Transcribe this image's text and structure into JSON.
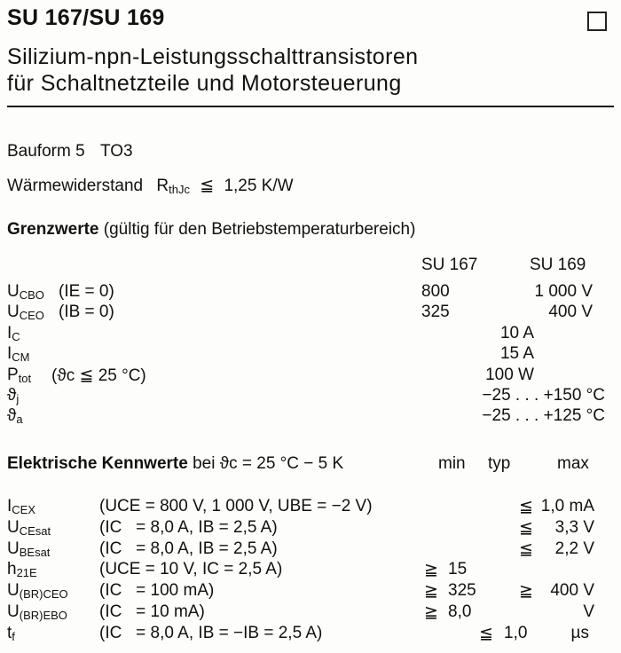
{
  "header": {
    "title": "SU 167/SU 169",
    "subtitle_line1": "Silizium-npn-Leistungsschalttransistoren",
    "subtitle_line2": "für Schaltnetzteile und Motorsteuerung"
  },
  "package": {
    "label": "Bauform 5",
    "value": "TO3"
  },
  "thermal": {
    "label": "Wärmewiderstand",
    "symbol": "R",
    "symbol_sub": "thJc",
    "relation": "≦",
    "value": "1,25 K/W"
  },
  "limits": {
    "heading": "Grenzwerte",
    "heading_note": "(gültig für den Betriebstemperaturbereich)",
    "columns": [
      "SU 167",
      "SU 169"
    ],
    "rows": [
      {
        "sym": "U",
        "sub": "CBO",
        "cond": "(IE = 0)",
        "su167": "800",
        "su169": "1 000 V",
        "both": ""
      },
      {
        "sym": "U",
        "sub": "CEO",
        "cond": "(IB = 0)",
        "su167": "325",
        "su169": "400 V",
        "both": ""
      },
      {
        "sym": "I",
        "sub": "C",
        "cond": "",
        "su167": "",
        "su169": "",
        "both": "10 A"
      },
      {
        "sym": "I",
        "sub": "CM",
        "cond": "",
        "su167": "",
        "su169": "",
        "both": "15 A"
      },
      {
        "sym": "P",
        "sub": "tot",
        "cond": "(ϑc ≦ 25 °C)",
        "su167": "",
        "su169": "",
        "both": "100 W"
      },
      {
        "sym": "ϑ",
        "sub": "j",
        "cond": "",
        "su167": "",
        "su169": "",
        "both": "−25 . . . +150 °C"
      },
      {
        "sym": "ϑ",
        "sub": "a",
        "cond": "",
        "su167": "",
        "su169": "",
        "both": "−25 . . . +125 °C"
      }
    ]
  },
  "electrical": {
    "heading": "Elektrische Kennwerte",
    "heading_note": "bei ϑc = 25 °C − 5 K",
    "col_min": "min",
    "col_typ": "typ",
    "col_max": "max",
    "rows": [
      {
        "sym": "I",
        "sub": "CEX",
        "cond": "(UCE = 800 V, 1 000 V, UBE = −2 V)",
        "min_sign": "",
        "min": "",
        "typ_sign": "",
        "typ": "",
        "max_sign": "≦",
        "max": "1,0 mA"
      },
      {
        "sym": "U",
        "sub": "CEsat",
        "cond": "(IC   = 8,0 A, IB = 2,5 A)",
        "min_sign": "",
        "min": "",
        "typ_sign": "",
        "typ": "",
        "max_sign": "≦",
        "max": "3,3 V"
      },
      {
        "sym": "U",
        "sub": "BEsat",
        "cond": "(IC   = 8,0 A, IB = 2,5 A)",
        "min_sign": "",
        "min": "",
        "typ_sign": "",
        "typ": "",
        "max_sign": "≦",
        "max": "2,2 V"
      },
      {
        "sym": "h",
        "sub": "21E",
        "cond": "(UCE = 10 V, IC = 2,5 A)",
        "min_sign": "≧",
        "min": "15",
        "typ_sign": "",
        "typ": "",
        "max_sign": "",
        "max": ""
      },
      {
        "sym": "U",
        "sub": "(BR)CEO",
        "cond": "(IC   = 100 mA)",
        "min_sign": "≧",
        "min": "325",
        "typ_sign": "",
        "typ": "",
        "max_sign": "≧",
        "max": "400 V"
      },
      {
        "sym": "U",
        "sub": "(BR)EBO",
        "cond": "(IC   = 10 mA)",
        "min_sign": "≧",
        "min": "8,0",
        "typ_sign": "",
        "typ": "",
        "max_sign": "",
        "max": "V"
      },
      {
        "sym": "t",
        "sub": "f",
        "cond": "(IC   = 8,0 A, IB = −IB = 2,5 A)",
        "min_sign": "",
        "min": "",
        "typ_sign": "≦",
        "typ": "1,0",
        "max_sign": "",
        "max": "µs"
      }
    ]
  }
}
